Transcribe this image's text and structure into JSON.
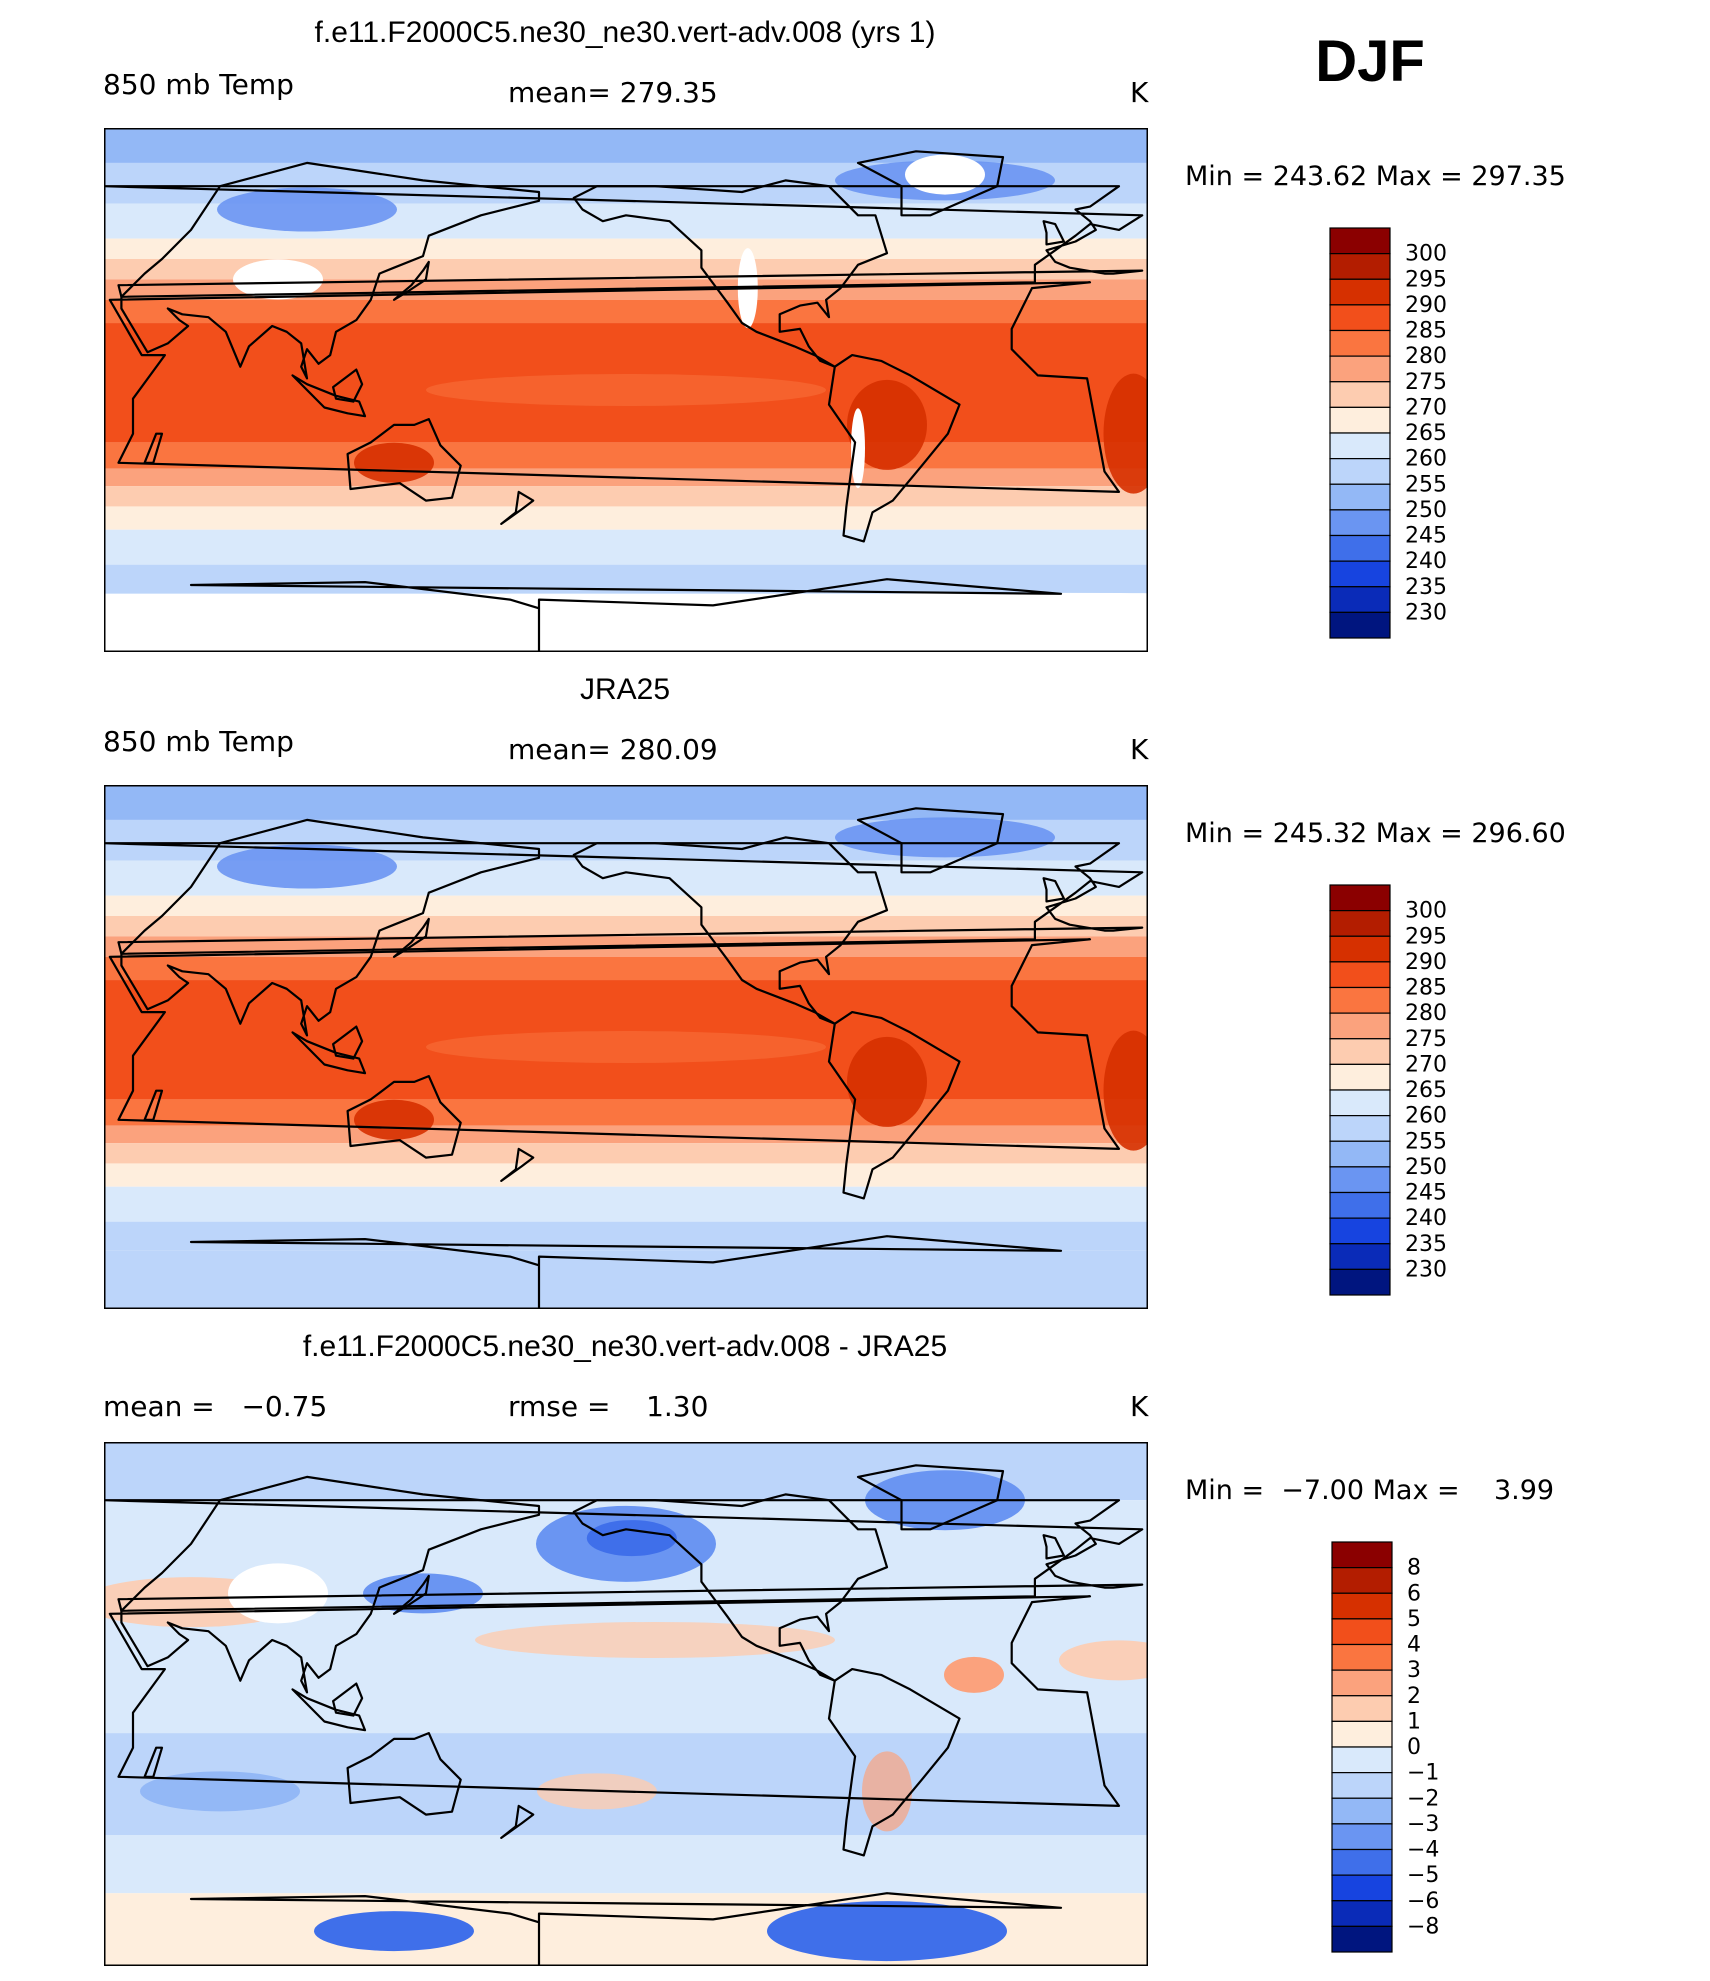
{
  "season": "DJF",
  "panels": [
    {
      "id": "model",
      "title": "f.e11.F2000C5.ne30_ne30.vert-adv.008 (yrs 1)",
      "left_label": "850 mb Temp",
      "center_label": "mean= 279.35",
      "units": "K",
      "minmax": "Min = 243.62 Max = 297.35",
      "colorbar": {
        "labels": [
          "300",
          "295",
          "290",
          "285",
          "280",
          "275",
          "270",
          "265",
          "260",
          "255",
          "250",
          "245",
          "240",
          "235",
          "230"
        ],
        "colors": [
          "#8b0000",
          "#b31d00",
          "#d63000",
          "#f24f1b",
          "#fa7540",
          "#fba27d",
          "#fdccb0",
          "#feeedd",
          "#d9e9fb",
          "#bcd5fa",
          "#93b8f6",
          "#6a95f2",
          "#3f6fea",
          "#1744e0",
          "#0a2bb8",
          "#00157f"
        ]
      },
      "map_style": "model"
    },
    {
      "id": "obs",
      "title": "JRA25",
      "left_label": "850 mb Temp",
      "center_label": "mean= 280.09",
      "units": "K",
      "minmax": "Min = 245.32 Max = 296.60",
      "colorbar": {
        "labels": [
          "300",
          "295",
          "290",
          "285",
          "280",
          "275",
          "270",
          "265",
          "260",
          "255",
          "250",
          "245",
          "240",
          "235",
          "230"
        ],
        "colors": [
          "#8b0000",
          "#b31d00",
          "#d63000",
          "#f24f1b",
          "#fa7540",
          "#fba27d",
          "#fdccb0",
          "#feeedd",
          "#d9e9fb",
          "#bcd5fa",
          "#93b8f6",
          "#6a95f2",
          "#3f6fea",
          "#1744e0",
          "#0a2bb8",
          "#00157f"
        ]
      },
      "map_style": "obs"
    },
    {
      "id": "diff",
      "title": "f.e11.F2000C5.ne30_ne30.vert-adv.008 - JRA25",
      "left_label": "mean =   −0.75",
      "center_label": "rmse =    1.30",
      "units": "K",
      "minmax": "Min =  −7.00 Max =    3.99",
      "colorbar": {
        "labels": [
          "8",
          "6",
          "5",
          "4",
          "3",
          "2",
          "1",
          "0",
          "−1",
          "−2",
          "−3",
          "−4",
          "−5",
          "−6",
          "−8"
        ],
        "colors": [
          "#8b0000",
          "#b31d00",
          "#d63000",
          "#f24f1b",
          "#fa7540",
          "#fba27d",
          "#fdccb0",
          "#feeedd",
          "#d9e9fb",
          "#bcd5fa",
          "#93b8f6",
          "#6a95f2",
          "#3f6fea",
          "#1744e0",
          "#0a2bb8",
          "#00157f"
        ]
      },
      "map_style": "diff"
    }
  ]
}
